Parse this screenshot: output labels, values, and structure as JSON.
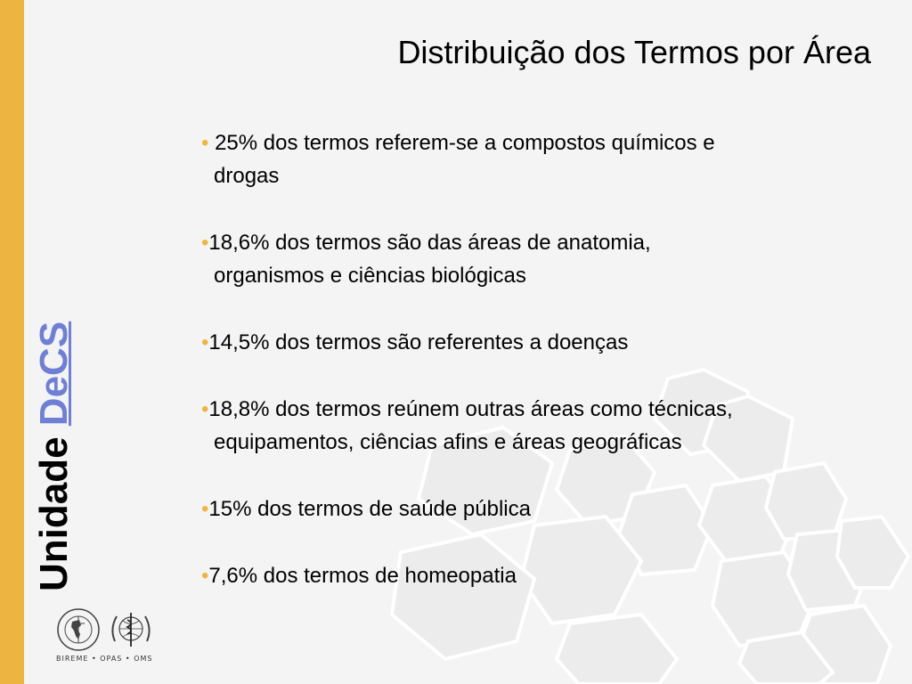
{
  "title": "Distribuição dos Termos por Área",
  "brand": {
    "word1": "Unidade",
    "word2": "DeCS"
  },
  "bullet_char": "•",
  "bullets": [
    {
      "line1": " 25% dos termos referem-se a compostos químicos e",
      "line2": " drogas"
    },
    {
      "line1": "18,6% dos termos são das áreas de anatomia,",
      "line2": "organismos e  ciências biológicas"
    },
    {
      "line1": "14,5% dos termos são referentes a doenças",
      "line2": ""
    },
    {
      "line1": "18,8% dos termos reúnem outras áreas como técnicas,",
      "line2": "equipamentos, ciências afins e áreas geográficas"
    },
    {
      "line1": "15% dos termos de saúde pública",
      "line2": ""
    },
    {
      "line1": "7,6% dos termos de homeopatia",
      "line2": ""
    }
  ],
  "logos": {
    "caption": "BIREME • OPAS • OMS"
  },
  "colors": {
    "stripe": "#ecb541",
    "bullet": "#f0b63a",
    "link": "#6f7fd6",
    "background": "#f4f4f4"
  }
}
